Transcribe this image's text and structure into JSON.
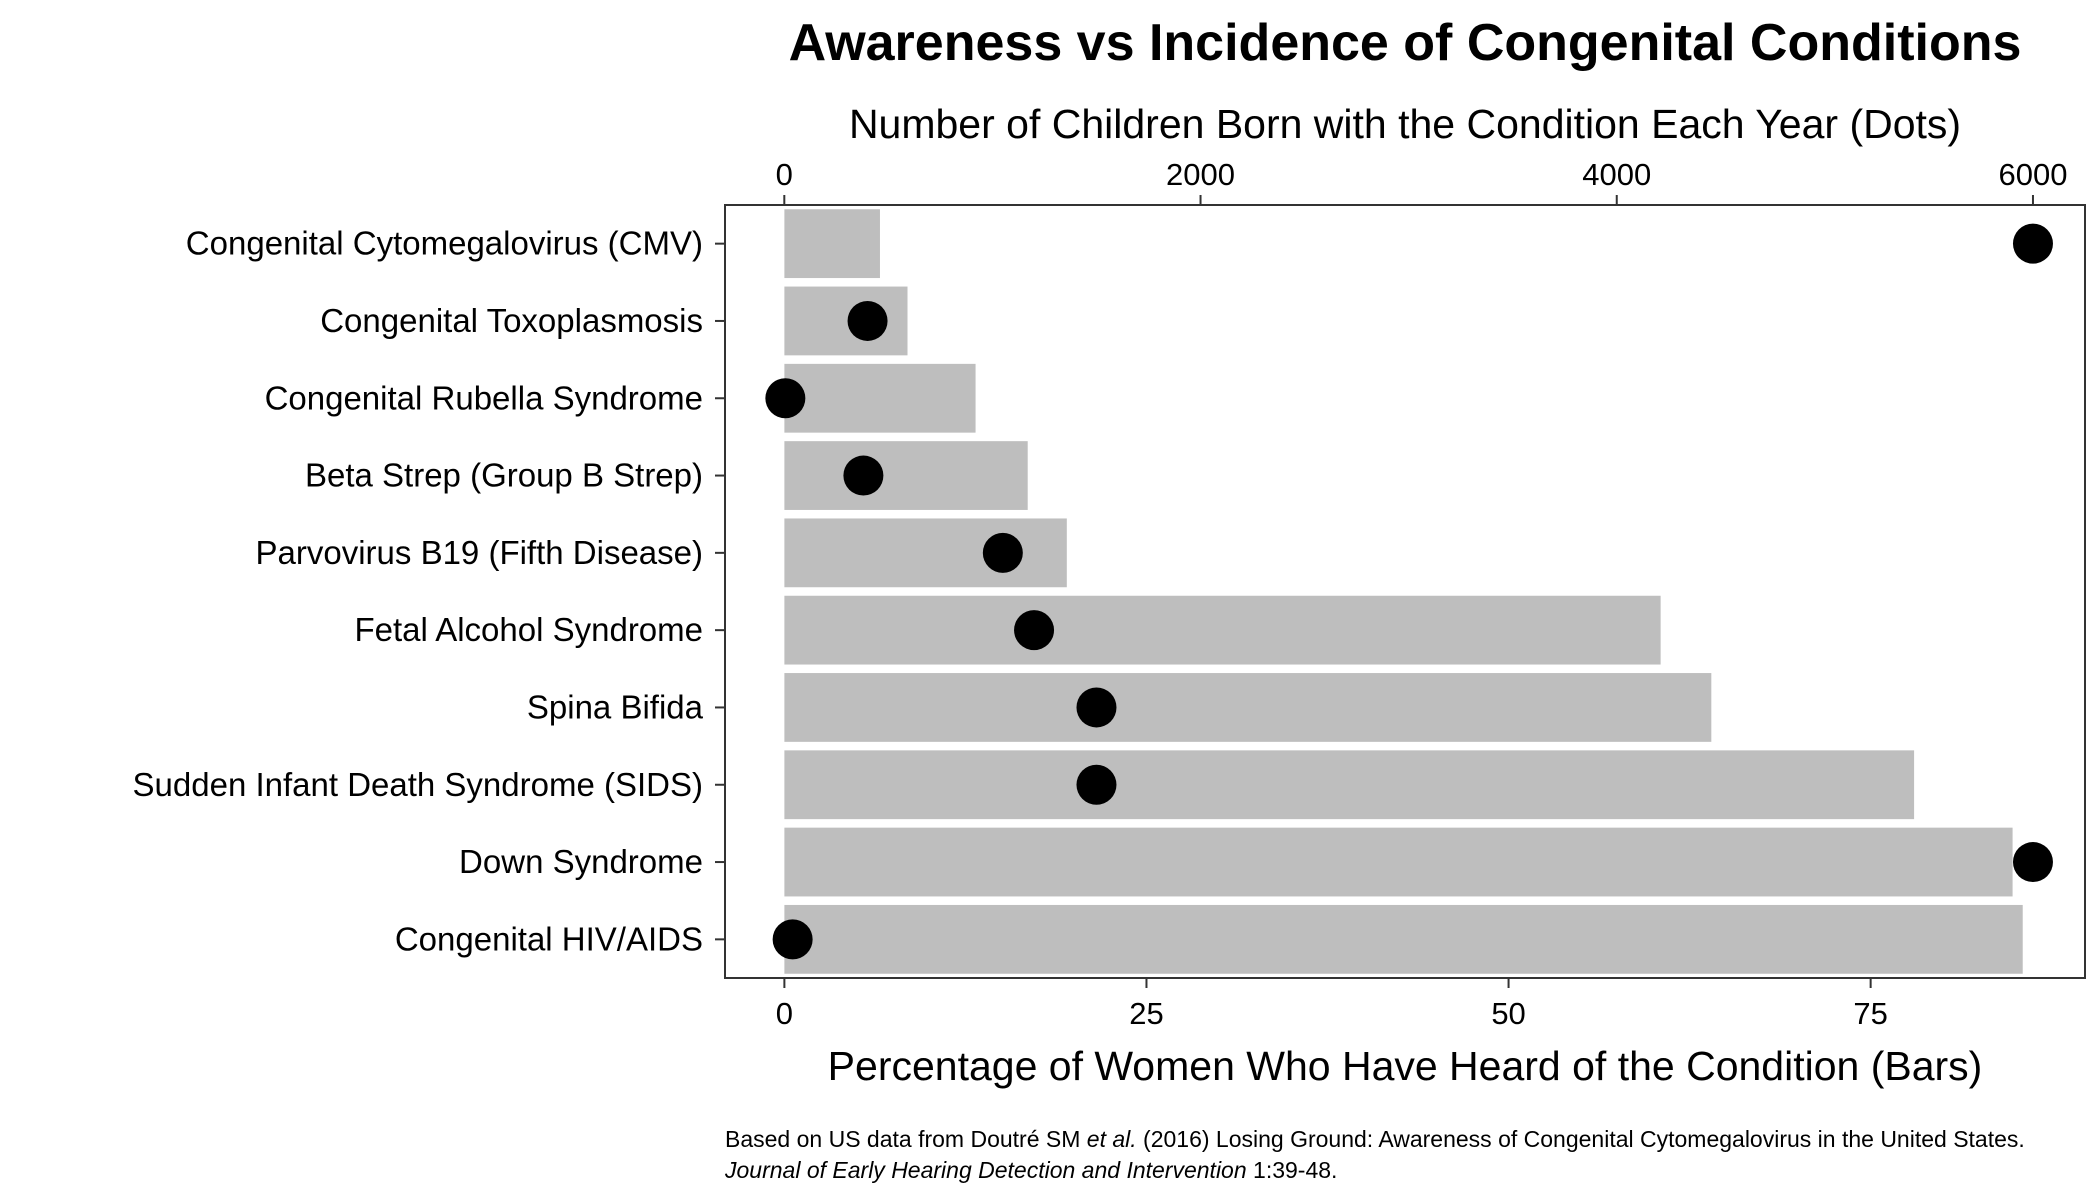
{
  "chart_data": {
    "type": "bar",
    "title": "Awareness vs Incidence of Congenital Conditions",
    "categories": [
      "Congenital Cytomegalovirus (CMV)",
      "Congenital Toxoplasmosis",
      "Congenital Rubella Syndrome",
      "Beta Strep (Group B Strep)",
      "Parvovirus B19 (Fifth Disease)",
      "Fetal Alcohol Syndrome",
      "Spina Bifida",
      "Sudden Infant Death Syndrome (SIDS)",
      "Down Syndrome",
      "Congenital HIV/AIDS"
    ],
    "series": [
      {
        "name": "Bars",
        "type": "bar",
        "axis": "bottom",
        "values": [
          6.6,
          8.5,
          13.2,
          16.8,
          19.5,
          60.5,
          64,
          78,
          84.8,
          85.5
        ]
      },
      {
        "name": "Dots",
        "type": "scatter",
        "axis": "top",
        "values": [
          6000,
          400,
          5,
          380,
          1050,
          1200,
          1500,
          1500,
          6000,
          40
        ]
      }
    ],
    "x_bottom": {
      "label": "Percentage of Women Who Have Heard of the Condition (Bars)",
      "range": [
        -4.1,
        89.8
      ],
      "ticks": [
        0,
        25,
        50,
        75
      ],
      "tick_labels": [
        "0",
        "25",
        "50",
        "75"
      ]
    },
    "x_top": {
      "label": "Number of Children Born with the Condition Each Year (Dots)",
      "range": [
        -285,
        6250
      ],
      "ticks": [
        0,
        2000,
        4000,
        6000
      ],
      "tick_labels": [
        "0",
        "2000",
        "4000",
        "6000"
      ]
    },
    "grid": false,
    "bar_color": "#bebebe",
    "dot_color": "#000000",
    "caption": {
      "part1": "Based on US data from Doutré SM ",
      "part2": "et al.",
      "part3": " (2016) Losing Ground: Awareness of Congenital Cytomegalovirus in the United States. ",
      "part4": "Journal of Early Hearing Detection and Intervention",
      "part5": " 1:39-48."
    }
  }
}
